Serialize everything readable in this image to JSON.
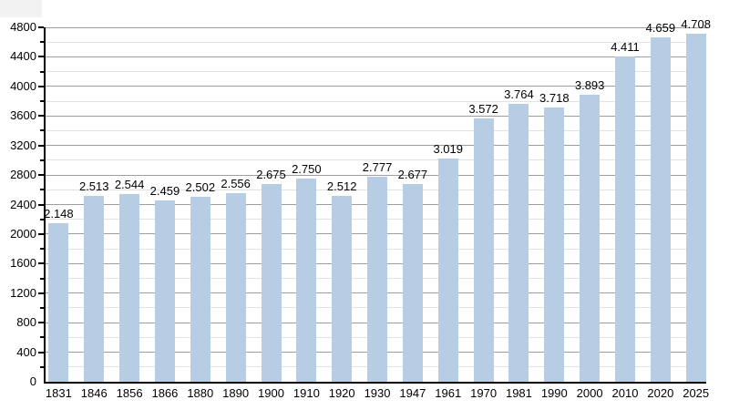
{
  "figure": {
    "background": "#ffffff",
    "corner_fragment_color": "#f2f2f2"
  },
  "chart_data": {
    "type": "bar",
    "title": "",
    "xlabel": "",
    "ylabel": "",
    "categories": [
      "1831",
      "1846",
      "1856",
      "1866",
      "1880",
      "1890",
      "1900",
      "1910",
      "1920",
      "1930",
      "1947",
      "1961",
      "1970",
      "1981",
      "1990",
      "2000",
      "2010",
      "2020",
      "2025"
    ],
    "values": [
      2148,
      2513,
      2544,
      2459,
      2502,
      2556,
      2675,
      2750,
      2512,
      2777,
      2677,
      3019,
      3572,
      3764,
      3718,
      3893,
      4411,
      4659,
      4708
    ],
    "bar_labels": [
      "2.148",
      "2.513",
      "2.544",
      "2.459",
      "2.502",
      "2.556",
      "2.675",
      "2.750",
      "2.512",
      "2.777",
      "2.677",
      "3.019",
      "3.572",
      "3.764",
      "3.718",
      "3.893",
      "4.411",
      "4.659",
      "4.708"
    ],
    "y_ticks": [
      0,
      400,
      800,
      1200,
      1600,
      2000,
      2400,
      2800,
      3200,
      3600,
      4000,
      4400,
      4800
    ],
    "y_minor_step": 200,
    "ylim": [
      0,
      4800
    ],
    "grid": true,
    "legend": "none",
    "colors": {
      "bar": "#b7cde3",
      "axis": "#000000",
      "gridline_major": "#9e9e9e",
      "gridline_minor": "#e2e2e2",
      "text": "#000000"
    }
  }
}
